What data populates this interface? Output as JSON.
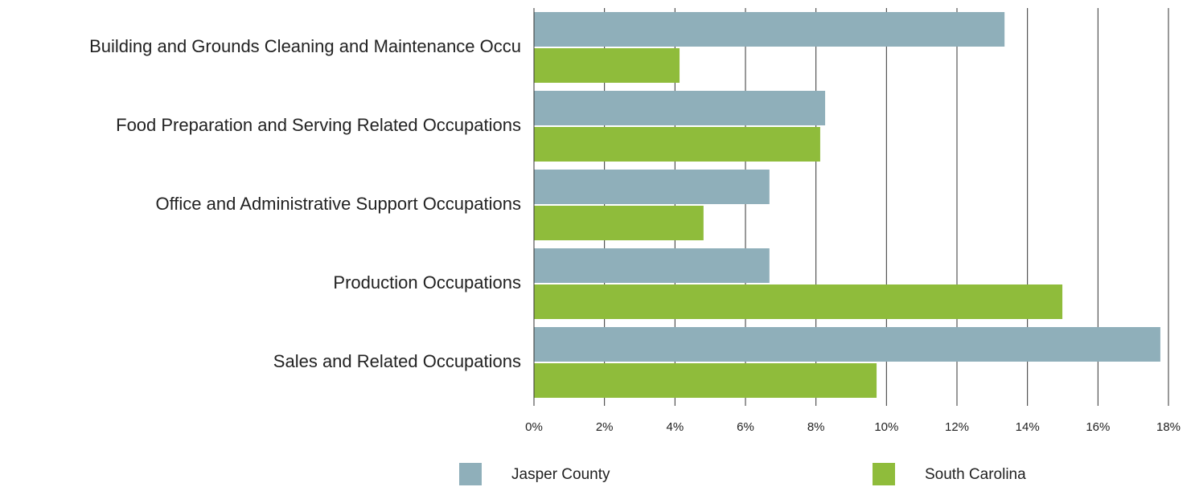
{
  "chart_data": {
    "type": "bar",
    "orientation": "horizontal",
    "categories": [
      "Building and Grounds Cleaning and Maintenance Occu",
      "Food Preparation and Serving Related Occupations",
      "Office and Administrative Support Occupations",
      "Production Occupations",
      "Sales and Related Occupations"
    ],
    "series": [
      {
        "name": "Jasper County",
        "color": "#8fafba",
        "values": [
          13.35,
          8.26,
          6.68,
          6.68,
          17.77
        ]
      },
      {
        "name": "South Carolina",
        "color": "#8fbc3b",
        "values": [
          4.13,
          8.12,
          4.81,
          14.99,
          9.72
        ]
      }
    ],
    "xlim": [
      0,
      18
    ],
    "xticks": [
      {
        "value": 0,
        "label": "0%"
      },
      {
        "value": 2,
        "label": "2%"
      },
      {
        "value": 4,
        "label": "4%"
      },
      {
        "value": 6,
        "label": "6%"
      },
      {
        "value": 8,
        "label": "8%"
      },
      {
        "value": 10,
        "label": "10%"
      },
      {
        "value": 12,
        "label": "12%"
      },
      {
        "value": 14,
        "label": "14%"
      },
      {
        "value": 16,
        "label": "16%"
      },
      {
        "value": 18,
        "label": "18%"
      }
    ],
    "grid": true,
    "legend": "bottom"
  }
}
